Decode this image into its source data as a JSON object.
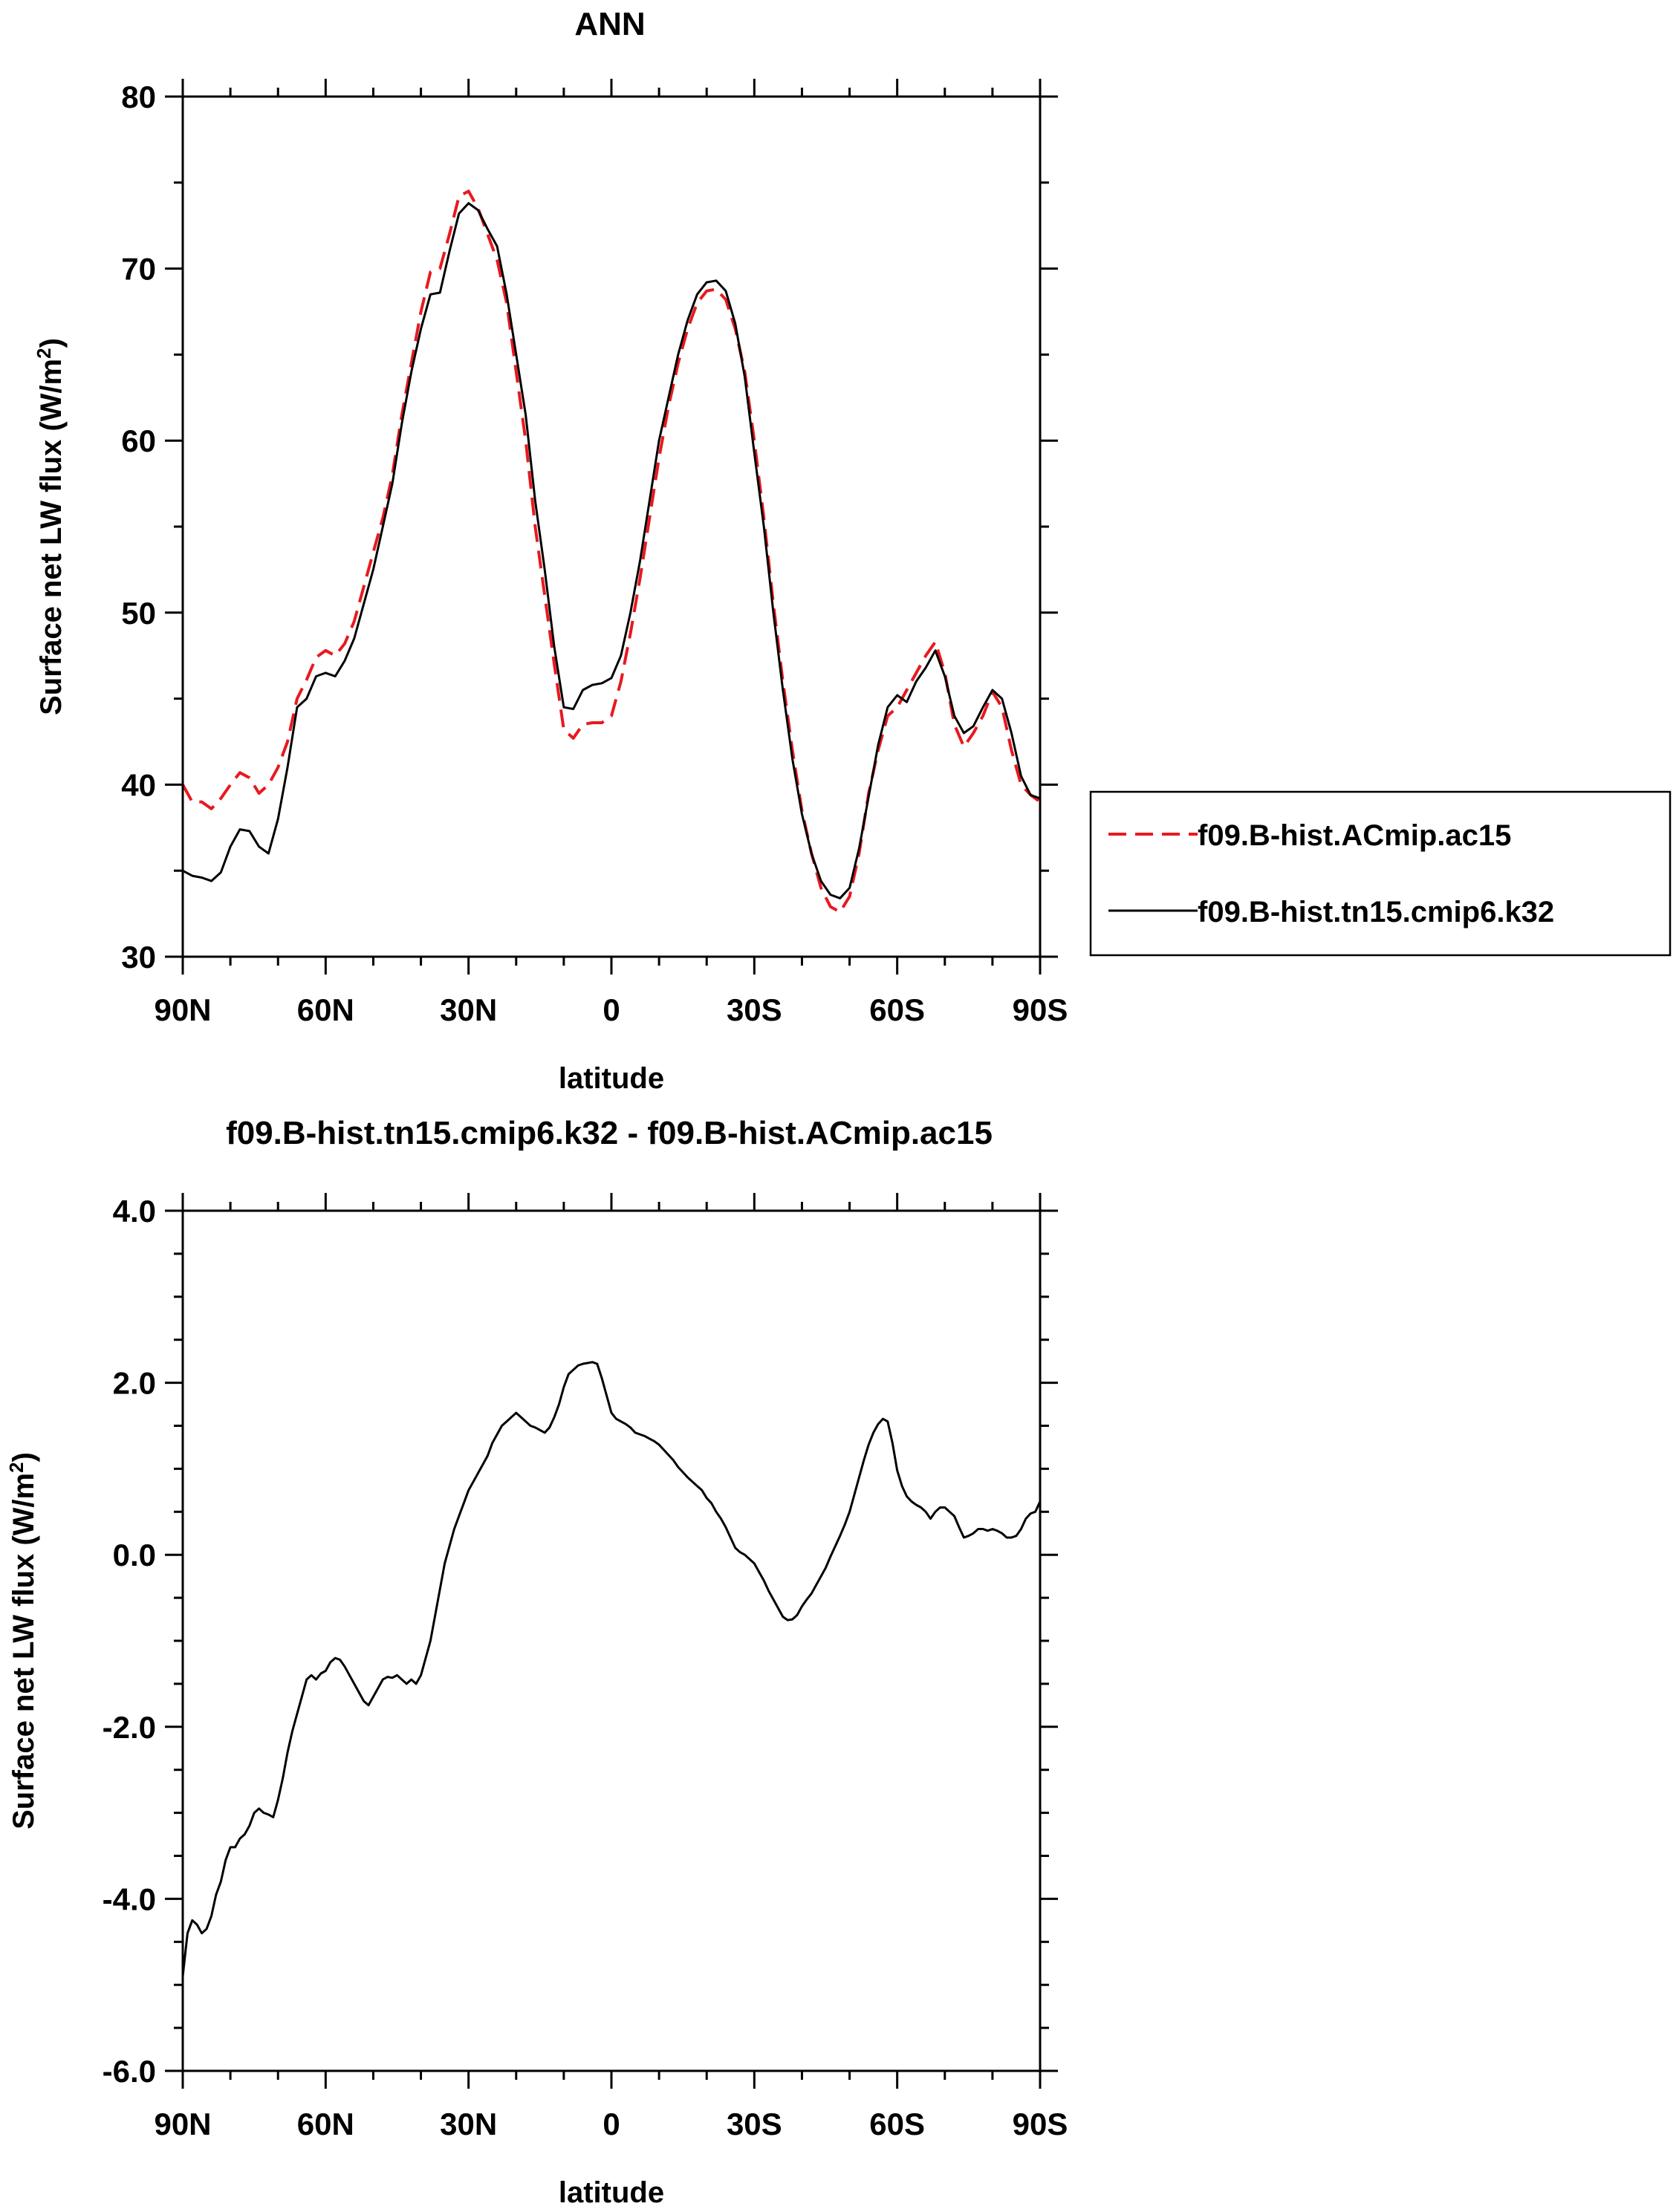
{
  "chart_data": [
    {
      "type": "line",
      "title": "ANN",
      "xlabel": "latitude",
      "ylabel": "Surface net LW flux (W/m",
      "ylabel_sup": "2",
      "ylabel_close": ")",
      "xlim": [
        90,
        -90
      ],
      "ylim": [
        30,
        80
      ],
      "xticks": [
        90,
        60,
        30,
        0,
        -30,
        -60,
        -90
      ],
      "xtick_labels": [
        "90N",
        "60N",
        "30N",
        "0",
        "30S",
        "60S",
        "90S"
      ],
      "yticks": [
        30,
        40,
        50,
        60,
        70,
        80
      ],
      "ytick_labels": [
        "30",
        "40",
        "50",
        "60",
        "70",
        "80"
      ],
      "legend_position": "right",
      "grid": false,
      "series": [
        {
          "name": "f09.B-hist.ACmip.ac15",
          "color": "#e8191f",
          "dash": "dashed",
          "x": [
            90,
            88,
            86,
            84,
            82,
            80,
            78,
            76,
            74,
            72,
            70,
            68,
            66,
            64,
            62,
            60,
            58,
            56,
            54,
            52,
            50,
            48,
            46,
            44,
            42,
            40,
            38,
            36,
            34,
            32,
            30,
            28,
            26,
            24,
            22,
            20,
            18,
            16,
            14,
            12,
            10,
            8,
            6,
            4,
            2,
            0,
            -2,
            -4,
            -6,
            -8,
            -10,
            -12,
            -14,
            -16,
            -18,
            -20,
            -22,
            -24,
            -26,
            -28,
            -30,
            -32,
            -34,
            -36,
            -38,
            -40,
            -42,
            -44,
            -46,
            -48,
            -50,
            -52,
            -54,
            -56,
            -58,
            -60,
            -62,
            -64,
            -66,
            -68,
            -70,
            -72,
            -74,
            -76,
            -78,
            -80,
            -82,
            -84,
            -86,
            -88,
            -90
          ],
          "y": [
            40.0,
            39.0,
            39.0,
            38.6,
            39.2,
            40.0,
            40.7,
            40.4,
            39.5,
            40.0,
            41.0,
            42.5,
            45.0,
            46.1,
            47.4,
            47.8,
            47.5,
            48.2,
            49.5,
            51.5,
            53.5,
            55.5,
            58.0,
            61.5,
            64.5,
            67.5,
            69.8,
            70.0,
            72.0,
            74.2,
            74.5,
            73.5,
            72.0,
            70.5,
            68.0,
            64.0,
            60.0,
            55.0,
            51.0,
            47.0,
            43.2,
            42.7,
            43.5,
            43.6,
            43.6,
            44.0,
            46.0,
            48.8,
            52.0,
            55.5,
            59.0,
            62.0,
            64.5,
            66.5,
            68.0,
            68.7,
            68.8,
            68.2,
            66.5,
            64.0,
            60.0,
            55.5,
            50.5,
            46.0,
            42.0,
            38.5,
            36.0,
            34.0,
            32.9,
            32.6,
            33.5,
            36.0,
            39.5,
            42.0,
            44.0,
            44.5,
            45.5,
            46.5,
            47.5,
            48.3,
            46.5,
            43.5,
            42.2,
            43.0,
            44.0,
            45.4,
            44.5,
            42.0,
            40.0,
            39.4,
            39.0
          ]
        },
        {
          "name": "f09.B-hist.tn15.cmip6.k32",
          "color": "#000000",
          "dash": "solid",
          "x": [
            90,
            88,
            86,
            84,
            82,
            80,
            78,
            76,
            74,
            72,
            70,
            68,
            66,
            64,
            62,
            60,
            58,
            56,
            54,
            52,
            50,
            48,
            46,
            44,
            42,
            40,
            38,
            36,
            34,
            32,
            30,
            28,
            26,
            24,
            22,
            20,
            18,
            16,
            14,
            12,
            10,
            8,
            6,
            4,
            2,
            0,
            -2,
            -4,
            -6,
            -8,
            -10,
            -12,
            -14,
            -16,
            -18,
            -20,
            -22,
            -24,
            -26,
            -28,
            -30,
            -32,
            -34,
            -36,
            -38,
            -40,
            -42,
            -44,
            -46,
            -48,
            -50,
            -52,
            -54,
            -56,
            -58,
            -60,
            -62,
            -64,
            -66,
            -68,
            -70,
            -72,
            -74,
            -76,
            -78,
            -80,
            -82,
            -84,
            -86,
            -88,
            -90
          ],
          "y": [
            35.0,
            34.7,
            34.6,
            34.4,
            34.9,
            36.4,
            37.4,
            37.3,
            36.4,
            36.0,
            38.0,
            41.0,
            44.5,
            45.0,
            46.3,
            46.5,
            46.3,
            47.2,
            48.5,
            50.5,
            52.5,
            55.0,
            57.5,
            61.0,
            64.0,
            66.5,
            68.5,
            68.6,
            71.0,
            73.2,
            73.8,
            73.4,
            72.3,
            71.3,
            68.5,
            65.0,
            61.5,
            56.5,
            52.5,
            48.0,
            44.5,
            44.4,
            45.5,
            45.8,
            45.9,
            46.2,
            47.5,
            50.0,
            53.0,
            56.5,
            60.0,
            62.5,
            65.0,
            67.0,
            68.5,
            69.2,
            69.3,
            68.7,
            66.8,
            63.7,
            59.3,
            55.0,
            50.0,
            45.5,
            41.5,
            38.3,
            36.0,
            34.4,
            33.6,
            33.4,
            34.0,
            36.3,
            39.3,
            42.3,
            44.5,
            45.2,
            44.8,
            46.0,
            46.8,
            47.8,
            46.3,
            44.0,
            43.0,
            43.4,
            44.5,
            45.5,
            45.0,
            43.0,
            40.5,
            39.4,
            39.2
          ]
        }
      ]
    },
    {
      "type": "line",
      "title": "f09.B-hist.tn15.cmip6.k32 - f09.B-hist.ACmip.ac15",
      "xlabel": "latitude",
      "ylabel": "Surface net LW flux (W/m",
      "ylabel_sup": "2",
      "ylabel_close": ")",
      "xlim": [
        90,
        -90
      ],
      "ylim": [
        -6.0,
        4.0
      ],
      "xticks": [
        90,
        60,
        30,
        0,
        -30,
        -60,
        -90
      ],
      "xtick_labels": [
        "90N",
        "60N",
        "30N",
        "0",
        "30S",
        "60S",
        "90S"
      ],
      "yticks": [
        -6,
        -4,
        -2,
        0,
        2,
        4
      ],
      "ytick_labels": [
        "-6.0",
        "-4.0",
        "-2.0",
        "0.0",
        "2.0",
        "4.0"
      ],
      "grid": false,
      "series": [
        {
          "color": "#000000",
          "dash": "solid",
          "x": [
            90,
            89,
            88,
            87,
            86,
            85,
            84,
            83,
            82,
            81,
            80,
            79,
            78,
            77,
            76,
            75,
            74,
            73,
            72,
            71,
            70,
            69,
            68,
            67,
            66,
            65,
            64,
            63,
            62,
            61,
            60,
            59,
            58,
            57,
            56,
            55,
            54,
            53,
            52,
            51,
            50,
            49,
            48,
            47,
            46,
            45,
            44,
            43,
            42,
            41,
            40,
            39,
            38,
            37,
            36,
            35,
            34,
            33,
            32,
            31,
            30,
            29,
            28,
            27,
            26,
            25,
            24,
            23,
            22,
            21,
            20,
            19,
            18,
            17,
            16,
            15,
            14,
            13,
            12,
            11,
            10,
            9,
            8,
            7,
            6,
            5,
            4,
            3,
            2,
            1,
            0,
            -1,
            -2,
            -3,
            -4,
            -5,
            -6,
            -7,
            -8,
            -9,
            -10,
            -11,
            -12,
            -13,
            -14,
            -15,
            -16,
            -17,
            -18,
            -19,
            -20,
            -21,
            -22,
            -23,
            -24,
            -25,
            -26,
            -27,
            -28,
            -29,
            -30,
            -31,
            -32,
            -33,
            -34,
            -35,
            -36,
            -37,
            -38,
            -39,
            -40,
            -41,
            -42,
            -43,
            -44,
            -45,
            -46,
            -47,
            -48,
            -49,
            -50,
            -51,
            -52,
            -53,
            -54,
            -55,
            -56,
            -57,
            -58,
            -59,
            -60,
            -61,
            -62,
            -63,
            -64,
            -65,
            -66,
            -67,
            -68,
            -69,
            -70,
            -71,
            -72,
            -73,
            -74,
            -75,
            -76,
            -77,
            -78,
            -79,
            -80,
            -81,
            -82,
            -83,
            -84,
            -85,
            -86,
            -87,
            -88,
            -89,
            -90
          ],
          "y": [
            -4.9,
            -4.4,
            -4.25,
            -4.3,
            -4.4,
            -4.35,
            -4.2,
            -3.95,
            -3.8,
            -3.55,
            -3.4,
            -3.4,
            -3.3,
            -3.25,
            -3.15,
            -3.0,
            -2.95,
            -3.0,
            -3.02,
            -3.05,
            -2.85,
            -2.6,
            -2.3,
            -2.05,
            -1.85,
            -1.65,
            -1.45,
            -1.4,
            -1.45,
            -1.38,
            -1.35,
            -1.25,
            -1.2,
            -1.22,
            -1.3,
            -1.4,
            -1.5,
            -1.6,
            -1.7,
            -1.75,
            -1.65,
            -1.55,
            -1.45,
            -1.42,
            -1.43,
            -1.4,
            -1.45,
            -1.5,
            -1.45,
            -1.5,
            -1.4,
            -1.2,
            -1.0,
            -0.7,
            -0.4,
            -0.1,
            0.1,
            0.3,
            0.45,
            0.6,
            0.75,
            0.85,
            0.95,
            1.05,
            1.15,
            1.3,
            1.4,
            1.5,
            1.55,
            1.6,
            1.65,
            1.6,
            1.55,
            1.5,
            1.48,
            1.45,
            1.42,
            1.48,
            1.6,
            1.75,
            1.95,
            2.1,
            2.15,
            2.2,
            2.22,
            2.23,
            2.24,
            2.22,
            2.05,
            1.85,
            1.65,
            1.58,
            1.55,
            1.52,
            1.48,
            1.42,
            1.4,
            1.38,
            1.35,
            1.32,
            1.28,
            1.22,
            1.16,
            1.1,
            1.02,
            0.96,
            0.9,
            0.85,
            0.8,
            0.75,
            0.66,
            0.6,
            0.5,
            0.42,
            0.32,
            0.2,
            0.08,
            0.03,
            0.0,
            -0.05,
            -0.1,
            -0.2,
            -0.3,
            -0.42,
            -0.52,
            -0.62,
            -0.72,
            -0.76,
            -0.75,
            -0.7,
            -0.6,
            -0.52,
            -0.45,
            -0.35,
            -0.25,
            -0.15,
            -0.02,
            0.1,
            0.22,
            0.35,
            0.5,
            0.7,
            0.9,
            1.1,
            1.28,
            1.42,
            1.52,
            1.58,
            1.55,
            1.3,
            0.98,
            0.8,
            0.68,
            0.62,
            0.58,
            0.55,
            0.5,
            0.42,
            0.5,
            0.55,
            0.55,
            0.5,
            0.45,
            0.32,
            0.2,
            0.22,
            0.25,
            0.3,
            0.3,
            0.28,
            0.3,
            0.28,
            0.25,
            0.2,
            0.2,
            0.22,
            0.3,
            0.42,
            0.48,
            0.5,
            0.62
          ]
        }
      ]
    }
  ]
}
